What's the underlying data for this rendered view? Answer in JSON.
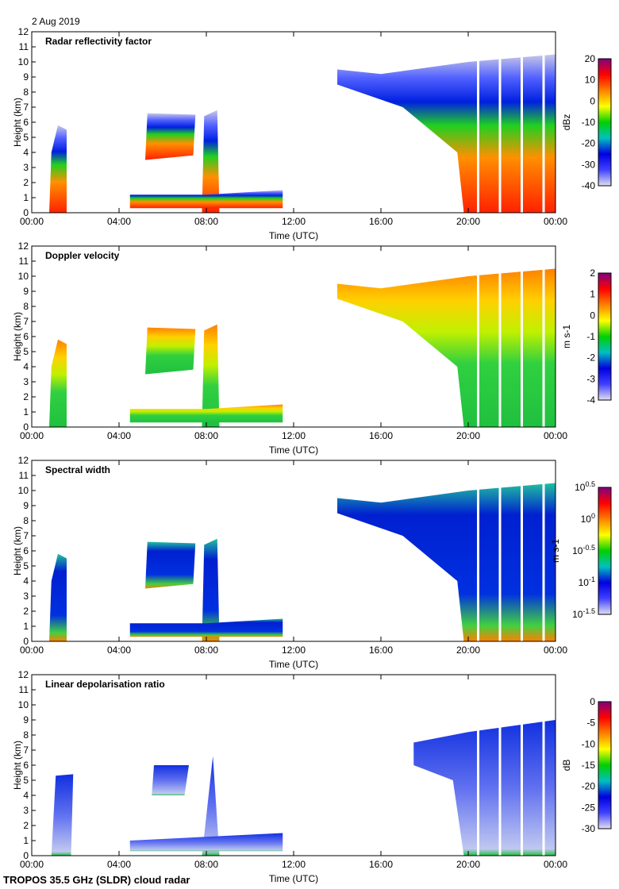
{
  "header": {
    "date": "2 Aug 2019"
  },
  "footer": {
    "instrument": "TROPOS 35.5 GHz (SLDR) cloud radar"
  },
  "chart_data": [
    {
      "type": "heatmap",
      "title": "Radar reflectivity factor",
      "xlabel": "Time (UTC)",
      "ylabel": "Height (km)",
      "xlim": [
        "00:00",
        "24:00"
      ],
      "ylim": [
        0,
        12
      ],
      "xticks": [
        "00:00",
        "04:00",
        "08:00",
        "12:00",
        "16:00",
        "20:00",
        "00:00"
      ],
      "yticks": [
        0,
        1,
        2,
        3,
        4,
        5,
        6,
        7,
        8,
        9,
        10,
        11,
        12
      ],
      "colorbar": {
        "label": "dBz",
        "ticks": [
          "20",
          "10",
          "0",
          "-10",
          "-20",
          "-30",
          "-40"
        ],
        "range": [
          -40,
          20
        ],
        "colors": [
          "#e0e0f0",
          "#4040ff",
          "#0000e0",
          "#00c0c0",
          "#00d000",
          "#ffff00",
          "#ff8000",
          "#ff0000",
          "#800080"
        ]
      }
    },
    {
      "type": "heatmap",
      "title": "Doppler velocity",
      "xlabel": "Time (UTC)",
      "ylabel": "Height (km)",
      "xlim": [
        "00:00",
        "24:00"
      ],
      "ylim": [
        0,
        12
      ],
      "xticks": [
        "00:00",
        "04:00",
        "08:00",
        "12:00",
        "16:00",
        "20:00",
        "00:00"
      ],
      "yticks": [
        0,
        1,
        2,
        3,
        4,
        5,
        6,
        7,
        8,
        9,
        10,
        11,
        12
      ],
      "colorbar": {
        "label": "m s-1",
        "label_main": "m s",
        "label_sup": "-1",
        "ticks": [
          "2",
          "1",
          "0",
          "-1",
          "-2",
          "-3",
          "-4"
        ],
        "range": [
          -4,
          2
        ],
        "colors": [
          "#e0e0f0",
          "#4040ff",
          "#0000e0",
          "#00c0c0",
          "#00d000",
          "#ffff00",
          "#ff8000",
          "#ff0000",
          "#800080"
        ]
      }
    },
    {
      "type": "heatmap",
      "title": "Spectral width",
      "xlabel": "Time (UTC)",
      "ylabel": "Height (km)",
      "xlim": [
        "00:00",
        "24:00"
      ],
      "ylim": [
        0,
        12
      ],
      "xticks": [
        "00:00",
        "04:00",
        "08:00",
        "12:00",
        "16:00",
        "20:00",
        "00:00"
      ],
      "yticks": [
        0,
        1,
        2,
        3,
        4,
        5,
        6,
        7,
        8,
        9,
        10,
        11,
        12
      ],
      "colorbar": {
        "label": "m s-1",
        "label_main": "m s",
        "label_sup": "-1",
        "log": true,
        "ticks": [
          "0.5",
          "0",
          "-0.5",
          "-1",
          "-1.5"
        ],
        "tick_base": "10",
        "range": [
          -1.5,
          0.5
        ],
        "colors": [
          "#e0e0f0",
          "#4040ff",
          "#0000e0",
          "#00c0c0",
          "#00d000",
          "#ffff00",
          "#ff8000",
          "#ff0000",
          "#800080"
        ]
      }
    },
    {
      "type": "heatmap",
      "title": "Linear depolarisation ratio",
      "xlabel": "Time (UTC)",
      "ylabel": "Height (km)",
      "xlim": [
        "00:00",
        "24:00"
      ],
      "ylim": [
        0,
        12
      ],
      "xticks": [
        "00:00",
        "04:00",
        "08:00",
        "12:00",
        "16:00",
        "20:00",
        "00:00"
      ],
      "yticks": [
        0,
        1,
        2,
        3,
        4,
        5,
        6,
        7,
        8,
        9,
        10,
        11,
        12
      ],
      "colorbar": {
        "label": "dB",
        "ticks": [
          "0",
          "-5",
          "-10",
          "-15",
          "-20",
          "-25",
          "-30"
        ],
        "range": [
          -30,
          0
        ],
        "colors": [
          "#e0e0f0",
          "#4040ff",
          "#0000e0",
          "#00c0c0",
          "#00d000",
          "#ffff00",
          "#ff8000",
          "#ff0000",
          "#800080"
        ]
      }
    }
  ]
}
